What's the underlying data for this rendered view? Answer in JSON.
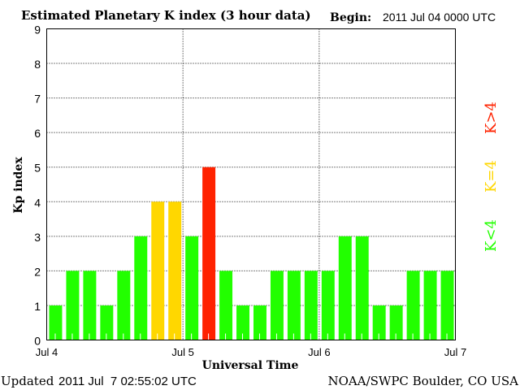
{
  "chart_data": {
    "type": "bar",
    "title": "Estimated Planetary K index (3 hour data)",
    "begin_label": "Begin:",
    "begin_value": "2011 Jul 04 0000 UTC",
    "xlabel": "Universal Time",
    "ylabel": "Kp index",
    "ylim": [
      0,
      9
    ],
    "yticks": [
      "0",
      "1",
      "2",
      "3",
      "4",
      "5",
      "6",
      "7",
      "8",
      "9"
    ],
    "xticks": [
      "Jul 4",
      "Jul 5",
      "Jul 6",
      "Jul 7"
    ],
    "values": [
      1,
      2,
      2,
      1,
      2,
      3,
      4,
      4,
      3,
      5,
      2,
      1,
      1,
      2,
      2,
      2,
      2,
      3,
      3,
      1,
      1,
      2,
      2,
      2
    ],
    "colors": {
      "below": "#22ff00",
      "equal": "#ffd700",
      "above": "#ff2200"
    },
    "legend": [
      {
        "label": "K<4",
        "color": "#22ff00"
      },
      {
        "label": "K=4",
        "color": "#ffd700"
      },
      {
        "label": "K>4",
        "color": "#ff2200"
      }
    ],
    "legend_placement": "right",
    "grid": true
  },
  "footer": {
    "updated_label": "Updated",
    "updated_value": "2011 Jul  7 02:55:02 UTC",
    "source": "NOAA/SWPC Boulder, CO USA"
  }
}
